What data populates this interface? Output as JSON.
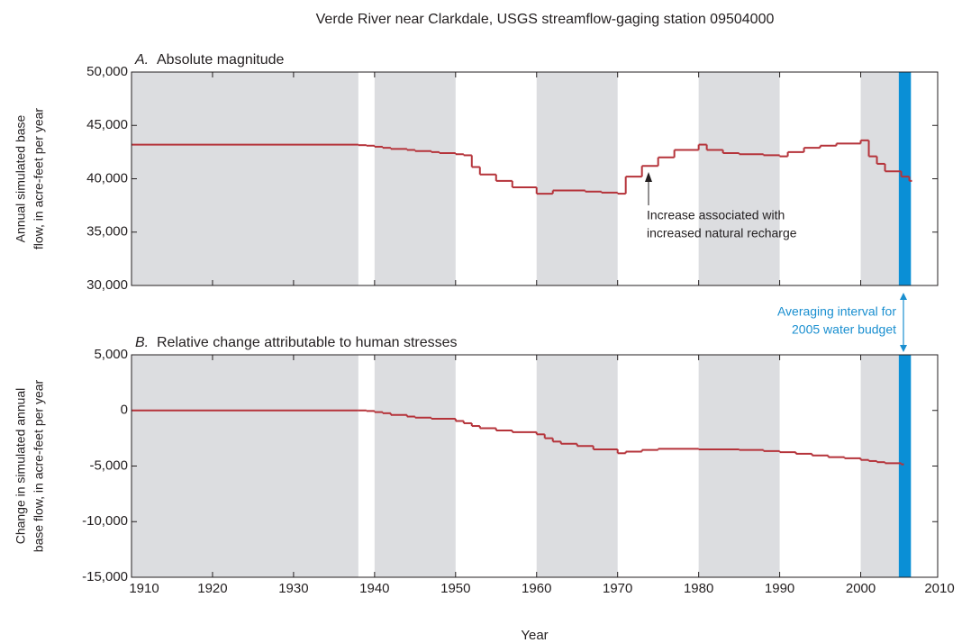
{
  "chart_data": [
    {
      "type": "step-line",
      "title": "Verde River near Clarkdale, USGS streamflow-gaging station 09504000",
      "panel_letter": "A.",
      "subtitle": "Absolute magnitude",
      "ylabel": [
        "Annual simulated base",
        "flow, in acre-feet per year"
      ],
      "x": [
        1910,
        1938,
        1939,
        1940,
        1941,
        1942,
        1944,
        1945,
        1947,
        1948,
        1950,
        1951,
        1952,
        1953,
        1955,
        1957,
        1960,
        1962,
        1966,
        1968,
        1970,
        1971,
        1973,
        1975,
        1977,
        1980,
        1981,
        1983,
        1985,
        1988,
        1990,
        1991,
        1993,
        1995,
        1997,
        2000,
        2001,
        2002,
        2003,
        2005,
        2006
      ],
      "values": [
        43200,
        43150,
        43100,
        43000,
        42900,
        42800,
        42700,
        42600,
        42500,
        42400,
        42300,
        42200,
        41100,
        40400,
        39800,
        39200,
        38600,
        38900,
        38800,
        38700,
        38600,
        40200,
        41200,
        42000,
        42700,
        43200,
        42700,
        42400,
        42300,
        42200,
        42100,
        42500,
        42900,
        43100,
        43300,
        43600,
        42100,
        41400,
        40700,
        40200,
        39800
      ],
      "color": "#b5333a",
      "shaded_spans": [
        [
          1910,
          1938
        ],
        [
          1940,
          1950
        ],
        [
          1960,
          1970
        ],
        [
          1980,
          1990
        ],
        [
          2000,
          2004.7
        ]
      ],
      "highlight_span": [
        2004.7,
        2006.2
      ],
      "xlim": [
        1910,
        2009.5
      ],
      "xticks": [
        1910,
        1920,
        1930,
        1940,
        1950,
        1960,
        1970,
        1980,
        1990,
        2000,
        2010
      ],
      "ylim": [
        30000,
        50000
      ],
      "yticks": [
        {
          "value": 30000,
          "label": "30,000"
        },
        {
          "value": 35000,
          "label": "35,000"
        },
        {
          "value": 40000,
          "label": "40,000"
        },
        {
          "value": 45000,
          "label": "45,000"
        },
        {
          "value": 50000,
          "label": "50,000"
        }
      ],
      "annotation": [
        "Increase associated with",
        "increased natural recharge"
      ]
    },
    {
      "type": "step-line",
      "panel_letter": "B.",
      "subtitle": "Relative change attributable to human stresses",
      "ylabel": [
        "Change in simulated annual",
        "base flow, in acre-feet per year"
      ],
      "xlabel": "Year",
      "x": [
        1910,
        1938,
        1939,
        1940,
        1941,
        1942,
        1944,
        1945,
        1947,
        1950,
        1951,
        1952,
        1953,
        1955,
        1957,
        1960,
        1961,
        1962,
        1963,
        1965,
        1967,
        1970,
        1971,
        1973,
        1975,
        1980,
        1985,
        1988,
        1990,
        1992,
        1994,
        1996,
        1998,
        2000,
        2001,
        2002,
        2003,
        2005
      ],
      "values": [
        0,
        0,
        -50,
        -150,
        -250,
        -400,
        -550,
        -650,
        -750,
        -950,
        -1150,
        -1400,
        -1600,
        -1800,
        -1950,
        -2150,
        -2500,
        -2800,
        -3000,
        -3200,
        -3500,
        -3850,
        -3700,
        -3550,
        -3450,
        -3500,
        -3550,
        -3650,
        -3750,
        -3900,
        -4050,
        -4200,
        -4300,
        -4450,
        -4550,
        -4650,
        -4750,
        -4850
      ],
      "color": "#b5333a",
      "shaded_spans": [
        [
          1910,
          1938
        ],
        [
          1940,
          1950
        ],
        [
          1960,
          1970
        ],
        [
          1980,
          1990
        ],
        [
          2000,
          2004.7
        ]
      ],
      "highlight_span": [
        2004.7,
        2006.2
      ],
      "xlim": [
        1910,
        2009.5
      ],
      "xticks": [
        1910,
        1920,
        1930,
        1940,
        1950,
        1960,
        1970,
        1980,
        1990,
        2000,
        2010
      ],
      "ylim": [
        -15000,
        5000
      ],
      "yticks": [
        {
          "value": -15000,
          "label": "-15,000"
        },
        {
          "value": -10000,
          "label": "-10,000"
        },
        {
          "value": -5000,
          "label": "-5,000"
        },
        0,
        {
          "value": 5000,
          "label": "5,000"
        }
      ],
      "annotation": [
        "Averaging interval for",
        "2005 water budget"
      ]
    }
  ]
}
